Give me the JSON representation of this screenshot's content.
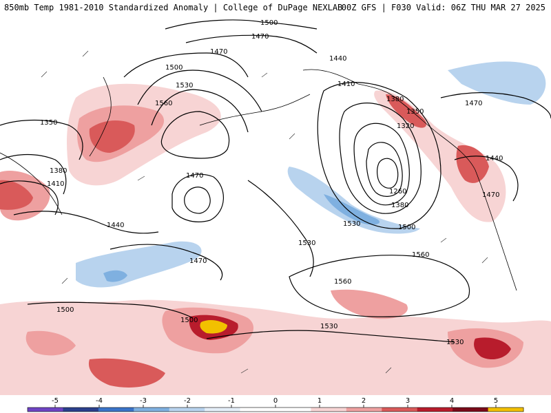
{
  "header": {
    "title_left": "850mb Temp 1981-2010 Standardized Anomaly | College of DuPage NEXLAB",
    "title_right": "00Z GFS | F030 Valid: 06Z THU MAR 27 2025"
  },
  "map": {
    "contour_labels": [
      {
        "text": "1500"
      },
      {
        "text": "1470"
      },
      {
        "text": "1470"
      },
      {
        "text": "1500"
      },
      {
        "text": "1530"
      },
      {
        "text": "1560"
      },
      {
        "text": "1350"
      },
      {
        "text": "1380"
      },
      {
        "text": "1410"
      },
      {
        "text": "1440"
      },
      {
        "text": "1470"
      },
      {
        "text": "1470"
      },
      {
        "text": "1500"
      },
      {
        "text": "1440"
      },
      {
        "text": "1410"
      },
      {
        "text": "1380"
      },
      {
        "text": "1350"
      },
      {
        "text": "1320"
      },
      {
        "text": "1260"
      },
      {
        "text": "1380"
      },
      {
        "text": "1500"
      },
      {
        "text": "1530"
      },
      {
        "text": "1530"
      },
      {
        "text": "1560"
      },
      {
        "text": "1560"
      },
      {
        "text": "1470"
      },
      {
        "text": "1440"
      },
      {
        "text": "1470"
      },
      {
        "text": "1500"
      },
      {
        "text": "1530"
      },
      {
        "text": "1530"
      }
    ]
  },
  "legend": {
    "tick_labels": [
      "-5",
      "-4",
      "-3",
      "-2",
      "-1",
      "0",
      "1",
      "2",
      "3",
      "4",
      "5"
    ],
    "colors": [
      "#6f44c4",
      "#2b3f8c",
      "#3a74c9",
      "#7fb0e0",
      "#b8d3ee",
      "#e4eef8",
      "#ffffff",
      "#ffffff",
      "#f7d4d4",
      "#eea0a0",
      "#d95a5a",
      "#b81c2c",
      "#7a0a1a",
      "#f2c000"
    ]
  }
}
